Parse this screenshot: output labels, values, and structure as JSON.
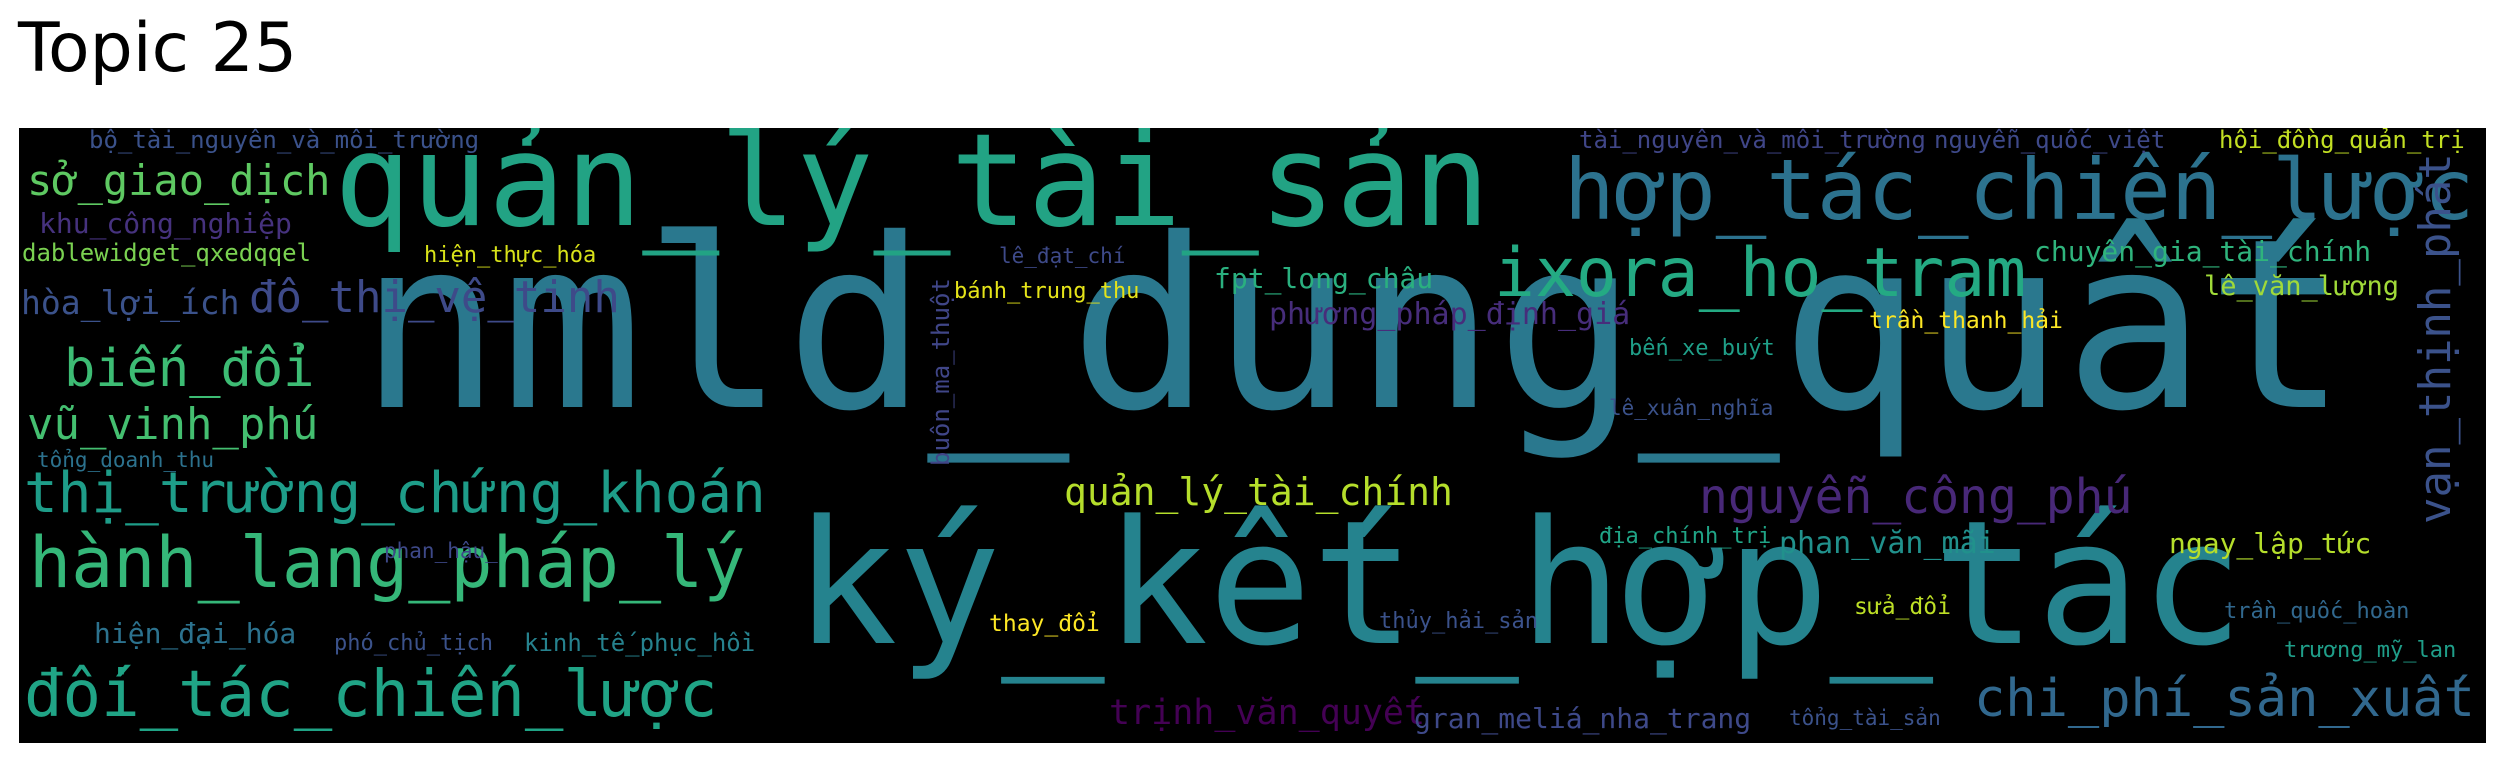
{
  "title": "Topic 25",
  "colors": {
    "background": "#000000",
    "title": "#000000"
  },
  "words": [
    {
      "text": "nmld_dung_quất",
      "color": "#2a788e"
    },
    {
      "text": "ký_kết_hợp_tác",
      "color": "#25838e"
    },
    {
      "text": "quản_lý_tài_sản",
      "color": "#22a384"
    },
    {
      "text": "hợp_tác_chiến_lược",
      "color": "#2c728e"
    },
    {
      "text": "ixora_ho_tram",
      "color": "#24aa83"
    },
    {
      "text": "hành_lang_pháp_lý",
      "color": "#35b779"
    },
    {
      "text": "đối_tác_chiến_lược",
      "color": "#20a486"
    },
    {
      "text": "thị_trường_chứng_khoán",
      "color": "#1e9d89"
    },
    {
      "text": "chi_phí_sản_xuất",
      "color": "#31688e"
    },
    {
      "text": "nguyễn_công_phú",
      "color": "#482878"
    },
    {
      "text": "vạn_thịnh_phát",
      "color": "#3b528b"
    },
    {
      "text": "biến_đổi",
      "color": "#3dbc74"
    },
    {
      "text": "vũ_vinh_phú",
      "color": "#44bf70"
    },
    {
      "text": "sở_giao_dịch",
      "color": "#5ec962"
    },
    {
      "text": "đô_thị_vệ_tinh",
      "color": "#3e4a89"
    },
    {
      "text": "quản_lý_tài_chính",
      "color": "#b5de2b"
    },
    {
      "text": "phương_pháp_định_giá",
      "color": "#472d7b"
    },
    {
      "text": "chuyên_gia_tài_chính",
      "color": "#2fb47c"
    },
    {
      "text": "lê_văn_lương",
      "color": "#a0da39"
    },
    {
      "text": "fpt_long_châu",
      "color": "#2ab07f"
    },
    {
      "text": "trịnh_văn_quyết",
      "color": "#440154"
    },
    {
      "text": "gran_meliá_nha_trang",
      "color": "#3e4989"
    },
    {
      "text": "hòa_lợi_ích",
      "color": "#3b528b"
    },
    {
      "text": "khu_công_nghiệp",
      "color": "#46327e"
    },
    {
      "text": "dablewidget_qxedqqel",
      "color": "#7ad151"
    },
    {
      "text": "phan_văn_mãi",
      "color": "#21918c"
    },
    {
      "text": "ngay_lập_tức",
      "color": "#b5de2b"
    },
    {
      "text": "hiện_đại_hóa",
      "color": "#2c728e"
    },
    {
      "text": "kinh_tế_phục_hồi",
      "color": "#26828e"
    },
    {
      "text": "buôn_ma_thuột",
      "color": "#404688"
    },
    {
      "text": "bộ_tài_nguyên_và_môi_trường",
      "color": "#3b528b"
    },
    {
      "text": "tài_nguyên_và_môi_trường",
      "color": "#404688"
    },
    {
      "text": "nguyễn_quốc_việt",
      "color": "#3e4989"
    },
    {
      "text": "hội_đồng_quản_trị",
      "color": "#c2df23"
    },
    {
      "text": "hiện_thực_hóa",
      "color": "#d8e219"
    },
    {
      "text": "lê_đạt_chí",
      "color": "#3e4a89"
    },
    {
      "text": "bánh_trung_thu",
      "color": "#e5e419"
    },
    {
      "text": "trần_thanh_hải",
      "color": "#fde725"
    },
    {
      "text": "bến_xe_buýt",
      "color": "#1f9f88"
    },
    {
      "text": "lê_xuân_nghĩa",
      "color": "#3b528b"
    },
    {
      "text": "tổng_doanh_thu",
      "color": "#2c728e"
    },
    {
      "text": "phan_hậu_",
      "color": "#3e4989"
    },
    {
      "text": "địa_chính_trị",
      "color": "#20a486"
    },
    {
      "text": "thay_đổi",
      "color": "#fde725"
    },
    {
      "text": "thủy_hải_sản",
      "color": "#3b528b"
    },
    {
      "text": "sửa_đổi",
      "color": "#bddf26"
    },
    {
      "text": "trần_quốc_hoàn",
      "color": "#31688e"
    },
    {
      "text": "trương_mỹ_lan",
      "color": "#1f9e89"
    },
    {
      "text": "phó_chủ_tịch",
      "color": "#3b528b"
    },
    {
      "text": "tổng_tài_sản",
      "color": "#3b528b"
    }
  ]
}
